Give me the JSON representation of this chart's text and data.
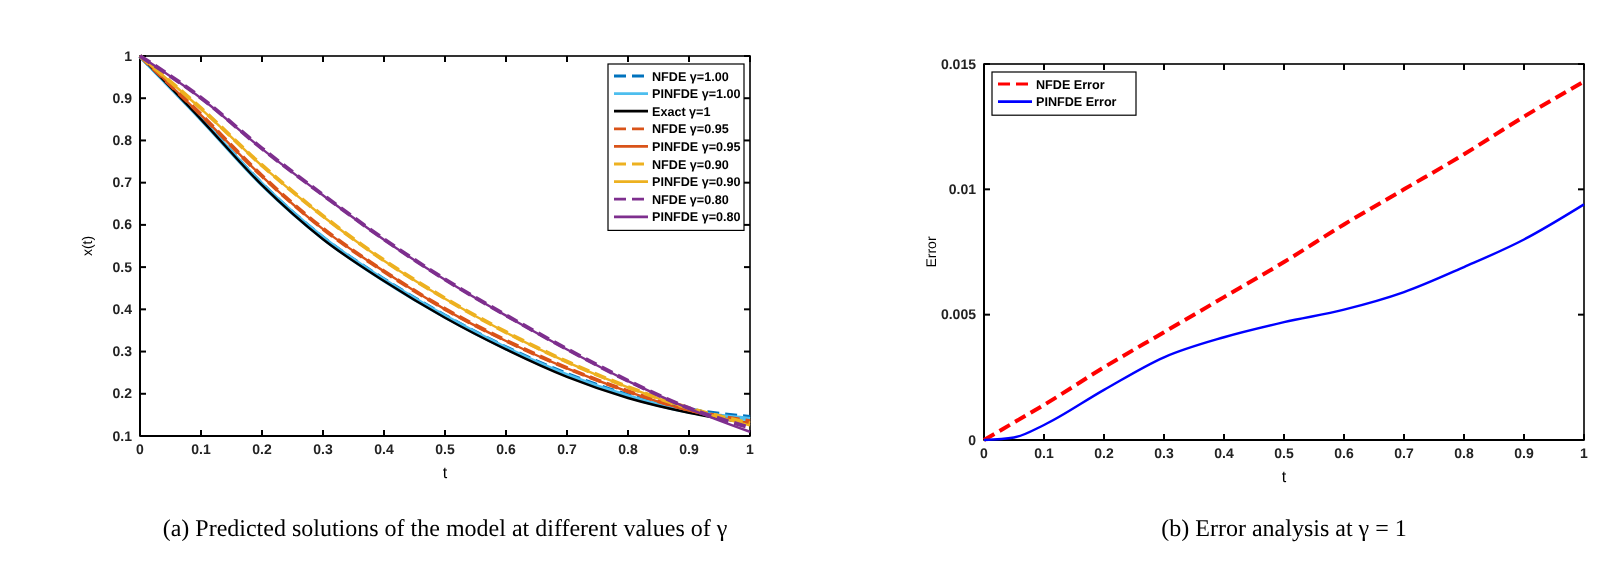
{
  "chart_data": [
    {
      "type": "line",
      "title": "(a) Predicted solutions of the model at different values of γ",
      "xlabel": "t",
      "ylabel": "x(t)",
      "x": [
        0,
        0.1,
        0.2,
        0.3,
        0.4,
        0.5,
        0.6,
        0.7,
        0.8,
        0.9,
        1
      ],
      "xlim": [
        0,
        1
      ],
      "ylim": [
        0.1,
        1
      ],
      "xticks": [
        0,
        0.1,
        0.2,
        0.3,
        0.4,
        0.5,
        0.6,
        0.7,
        0.8,
        0.9,
        1
      ],
      "yticks": [
        0.1,
        0.2,
        0.3,
        0.4,
        0.5,
        0.6,
        0.7,
        0.8,
        0.9,
        1
      ],
      "legend": "top right",
      "grid": false,
      "series": [
        {
          "name": "NFDE γ=1.00",
          "color": "#0072bd",
          "line_style": "dashed",
          "values": [
            1,
            0.852,
            0.697,
            0.57,
            0.471,
            0.385,
            0.31,
            0.247,
            0.197,
            0.163,
            0.145
          ]
        },
        {
          "name": "PINFDE γ=1.00",
          "color": "#4dbeee",
          "line_style": "solid",
          "values": [
            1,
            0.851,
            0.696,
            0.569,
            0.469,
            0.383,
            0.308,
            0.244,
            0.194,
            0.158,
            0.14
          ]
        },
        {
          "name": "Exact γ=1",
          "color": "#000000",
          "line_style": "solid",
          "values": [
            1,
            0.85,
            0.694,
            0.566,
            0.467,
            0.38,
            0.305,
            0.24,
            0.19,
            0.155,
            0.13
          ]
        },
        {
          "name": "NFDE γ=0.95",
          "color": "#d95319",
          "line_style": "dashed",
          "values": [
            1,
            0.861,
            0.716,
            0.591,
            0.49,
            0.401,
            0.326,
            0.261,
            0.206,
            0.162,
            0.135
          ]
        },
        {
          "name": "PINFDE γ=0.95",
          "color": "#d95319",
          "line_style": "solid",
          "values": [
            1,
            0.86,
            0.715,
            0.59,
            0.49,
            0.4,
            0.325,
            0.26,
            0.205,
            0.16,
            0.13
          ]
        },
        {
          "name": "NFDE γ=0.90",
          "color": "#edb120",
          "line_style": "dashed",
          "values": [
            1,
            0.876,
            0.741,
            0.621,
            0.516,
            0.426,
            0.346,
            0.276,
            0.216,
            0.166,
            0.13
          ]
        },
        {
          "name": "PINFDE γ=0.90",
          "color": "#edb120",
          "line_style": "solid",
          "values": [
            1,
            0.875,
            0.74,
            0.62,
            0.515,
            0.425,
            0.345,
            0.275,
            0.215,
            0.165,
            0.125
          ]
        },
        {
          "name": "NFDE γ=0.80",
          "color": "#7e2f8e",
          "line_style": "dashed",
          "values": [
            1,
            0.901,
            0.781,
            0.671,
            0.566,
            0.471,
            0.386,
            0.306,
            0.231,
            0.166,
            0.12
          ]
        },
        {
          "name": "PINFDE γ=0.80",
          "color": "#7e2f8e",
          "line_style": "solid",
          "values": [
            1,
            0.9,
            0.78,
            0.67,
            0.565,
            0.47,
            0.385,
            0.305,
            0.23,
            0.165,
            0.11
          ]
        }
      ]
    },
    {
      "type": "line",
      "title": "(b) Error analysis at γ = 1",
      "xlabel": "t",
      "ylabel": "Error",
      "x": [
        0,
        0.05,
        0.1,
        0.2,
        0.3,
        0.4,
        0.5,
        0.6,
        0.7,
        0.8,
        0.9,
        1
      ],
      "xlim": [
        0,
        1
      ],
      "ylim": [
        0,
        0.015
      ],
      "xticks": [
        0,
        0.1,
        0.2,
        0.3,
        0.4,
        0.5,
        0.6,
        0.7,
        0.8,
        0.9,
        1
      ],
      "yticks": [
        0,
        0.005,
        0.01,
        0.015
      ],
      "legend": "top left",
      "grid": false,
      "series": [
        {
          "name": "NFDE Error",
          "color": "#ff0000",
          "line_style": "dashed",
          "values": [
            0,
            0.0007,
            0.0014,
            0.0029,
            0.0043,
            0.0057,
            0.0071,
            0.0086,
            0.01,
            0.0114,
            0.0129,
            0.0143
          ]
        },
        {
          "name": "PINFDE Error",
          "color": "#0000ff",
          "line_style": "solid",
          "values": [
            0,
            0.0001,
            0.0006,
            0.002,
            0.0033,
            0.0041,
            0.0047,
            0.0052,
            0.0059,
            0.0069,
            0.008,
            0.0094
          ]
        }
      ]
    }
  ]
}
